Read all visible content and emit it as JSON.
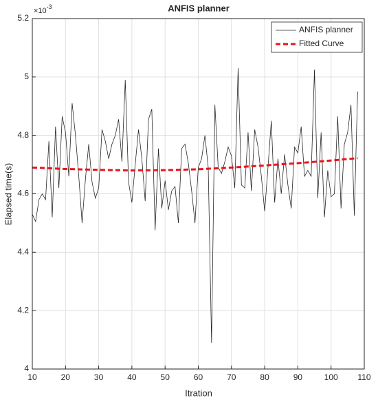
{
  "chart_data": {
    "type": "line",
    "title": "ANFIS planner",
    "x_label": "Itration",
    "y_label": "Elapsed time(s)",
    "y_multiplier": "×10",
    "y_multiplier_exp": "-3",
    "xlim": [
      10,
      110
    ],
    "xticks": [
      10,
      20,
      30,
      40,
      50,
      60,
      70,
      80,
      90,
      100,
      110
    ],
    "ylim": [
      4,
      5.2
    ],
    "yticks": [
      4,
      4.2,
      4.4,
      4.6,
      4.8,
      5,
      5.2
    ],
    "grid": true,
    "legend": "upper right",
    "series": [
      {
        "name": "ANFIS planner",
        "color": "#262626",
        "style": "solid",
        "x": [
          10,
          11,
          12,
          13,
          14,
          15,
          16,
          17,
          18,
          19,
          20,
          21,
          22,
          23,
          24,
          25,
          26,
          27,
          28,
          29,
          30,
          31,
          32,
          33,
          34,
          35,
          36,
          37,
          38,
          39,
          40,
          41,
          42,
          43,
          44,
          45,
          46,
          47,
          48,
          49,
          50,
          51,
          52,
          53,
          54,
          55,
          56,
          57,
          58,
          59,
          60,
          61,
          62,
          63,
          64,
          65,
          66,
          67,
          68,
          69,
          70,
          71,
          72,
          73,
          74,
          75,
          76,
          77,
          78,
          79,
          80,
          81,
          82,
          83,
          84,
          85,
          86,
          87,
          88,
          89,
          90,
          91,
          92,
          93,
          94,
          95,
          96,
          97,
          98,
          99,
          100,
          101,
          102,
          103,
          104,
          105,
          106,
          107,
          108
        ],
        "values": [
          4.53,
          4.505,
          4.58,
          4.6,
          4.58,
          4.78,
          4.52,
          4.83,
          4.62,
          4.865,
          4.81,
          4.66,
          4.91,
          4.8,
          4.66,
          4.5,
          4.65,
          4.77,
          4.64,
          4.585,
          4.62,
          4.82,
          4.78,
          4.72,
          4.77,
          4.8,
          4.855,
          4.71,
          4.99,
          4.64,
          4.57,
          4.7,
          4.82,
          4.72,
          4.575,
          4.855,
          4.89,
          4.475,
          4.755,
          4.55,
          4.645,
          4.545,
          4.61,
          4.625,
          4.5,
          4.755,
          4.77,
          4.705,
          4.61,
          4.5,
          4.69,
          4.72,
          4.8,
          4.69,
          4.09,
          4.905,
          4.69,
          4.67,
          4.71,
          4.76,
          4.73,
          4.62,
          5.03,
          4.63,
          4.62,
          4.81,
          4.61,
          4.82,
          4.76,
          4.66,
          4.54,
          4.69,
          4.85,
          4.57,
          4.72,
          4.6,
          4.735,
          4.63,
          4.55,
          4.76,
          4.74,
          4.83,
          4.66,
          4.68,
          4.66,
          5.025,
          4.585,
          4.81,
          4.52,
          4.68,
          4.59,
          4.6,
          4.865,
          4.55,
          4.77,
          4.81,
          4.905,
          4.525,
          4.95
        ]
      },
      {
        "name": "Fitted Curve",
        "color": "#e8131b",
        "style": "dashed",
        "x": [
          10,
          20,
          30,
          40,
          50,
          60,
          70,
          80,
          90,
          100,
          108
        ],
        "values": [
          4.69,
          4.685,
          4.682,
          4.68,
          4.681,
          4.684,
          4.69,
          4.697,
          4.705,
          4.714,
          4.722
        ]
      }
    ]
  }
}
